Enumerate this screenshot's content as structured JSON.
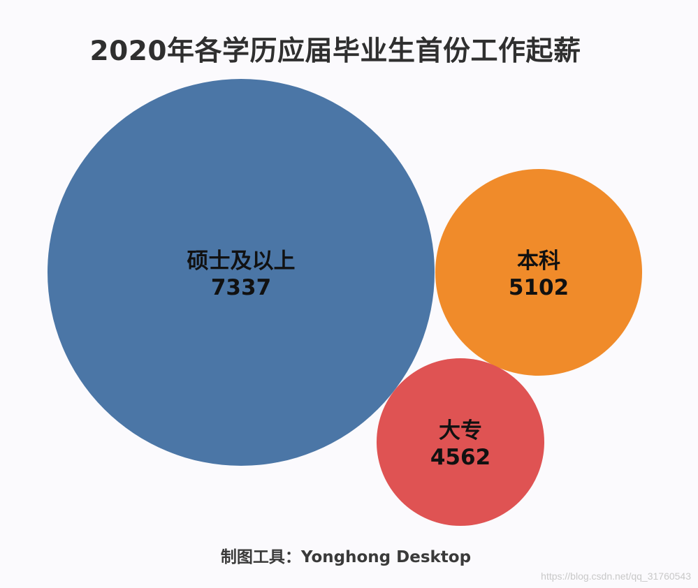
{
  "chart_data": {
    "type": "bubble",
    "title": "2020年各学历应届毕业生首份工作起薪",
    "categories": [
      "硕士及以上",
      "本科",
      "大专"
    ],
    "values": [
      7337,
      5102,
      4562
    ],
    "series": [
      {
        "points": [
          {
            "category": "硕士及以上",
            "value": 7337,
            "color": "#4b76a6"
          },
          {
            "category": "本科",
            "value": 5102,
            "color": "#f08b2a"
          },
          {
            "category": "大专",
            "value": 4562,
            "color": "#df5353"
          }
        ]
      }
    ],
    "legend": "none",
    "grid": false
  },
  "footer": "制图工具：Yonghong Desktop",
  "watermark": "https://blog.csdn.net/qq_31760543"
}
